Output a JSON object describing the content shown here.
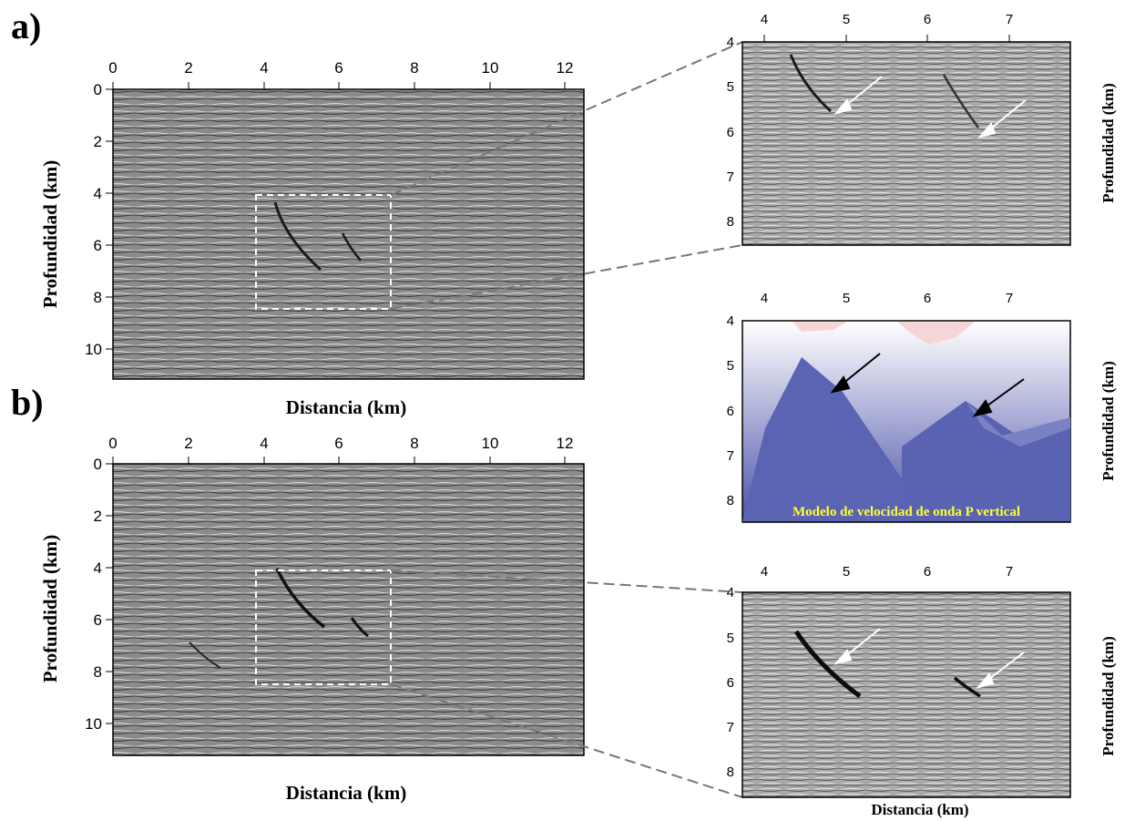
{
  "panel_labels": {
    "a": "a)",
    "b": "b)"
  },
  "axis_labels": {
    "distance": "Distancia (km)",
    "depth": "Profundidad (km)"
  },
  "large_axes": {
    "x_ticks": [
      "0",
      "2",
      "4",
      "6",
      "8",
      "10",
      "12"
    ],
    "y_ticks": [
      "0",
      "2",
      "4",
      "6",
      "8",
      "10"
    ]
  },
  "inset_axes": {
    "x_ticks": [
      "4",
      "5",
      "6",
      "7"
    ],
    "y_ticks": [
      "4",
      "5",
      "6",
      "7",
      "8"
    ]
  },
  "velocity_model": {
    "caption": "Modelo de velocidad de onda P vertical",
    "colors": {
      "caption": "#ffff33",
      "deep": "#4a52a8",
      "light": "#e8e8f4",
      "warm": "#f5d5d5"
    }
  },
  "colors": {
    "frame": "#000000",
    "seismic_bg": "#8a8a8a",
    "zoom_box": "#ffffff",
    "leader": "#777777"
  }
}
